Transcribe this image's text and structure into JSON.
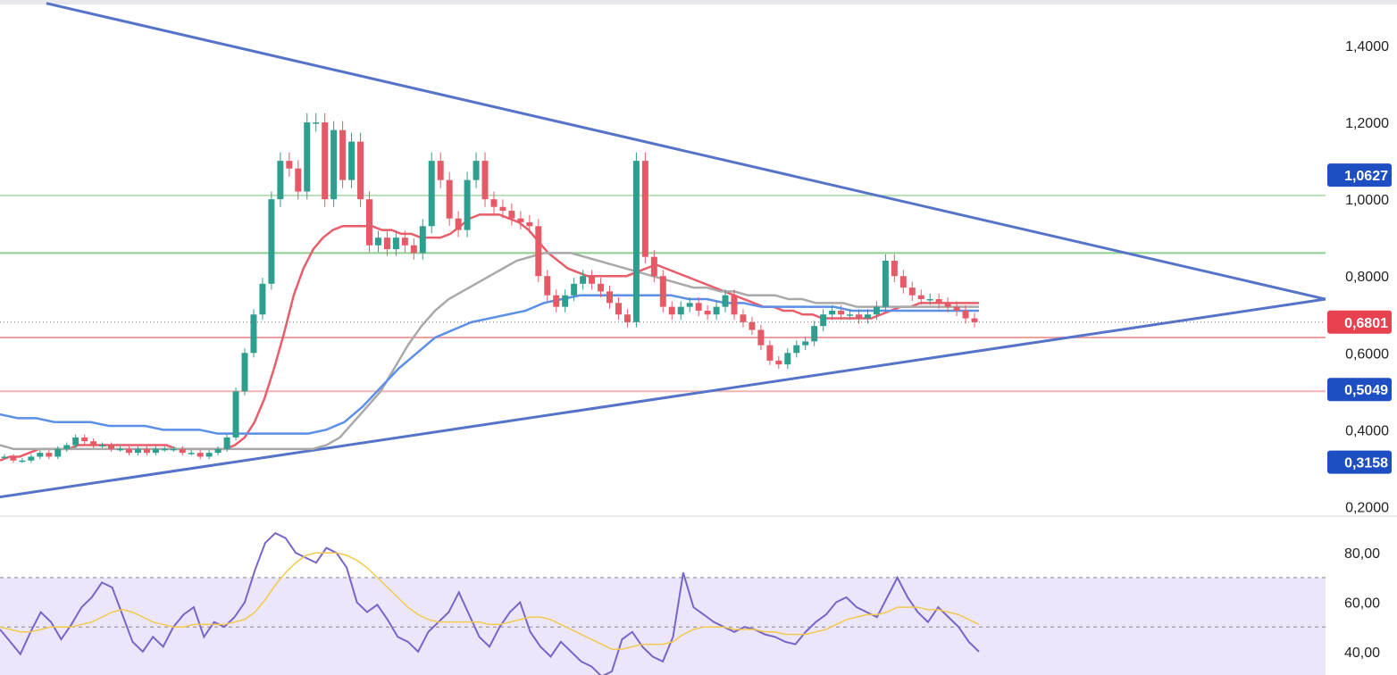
{
  "chart_data": [
    {
      "type": "candlestick",
      "title": "",
      "price_axis": {
        "ticks": [
          "1,4000",
          "1,2000",
          "1,0000",
          "0,8000",
          "0,6000",
          "0,4000",
          "0,2000"
        ],
        "tick_values": [
          1.4,
          1.2,
          1.0,
          0.8,
          0.6,
          0.4,
          0.2
        ],
        "range": [
          0.18,
          1.5
        ]
      },
      "price_labels": [
        {
          "text": "1,0627",
          "value": 1.0627,
          "color": "#1e4fc2"
        },
        {
          "text": "0,6801",
          "value": 0.6801,
          "color": "#e8414f"
        },
        {
          "text": "0,5049",
          "value": 0.5049,
          "color": "#1e4fc2"
        },
        {
          "text": "0,3158",
          "value": 0.3158,
          "color": "#1e4fc2"
        }
      ],
      "last_price": 0.6801,
      "horizontal_levels": [
        {
          "value": 1.01,
          "color": "#b9dfb9"
        },
        {
          "value": 0.86,
          "color": "#8ccf8c"
        },
        {
          "value": 0.64,
          "color": "#f0a0a0"
        },
        {
          "value": 0.5,
          "color": "#f3b4b4"
        }
      ],
      "close_series": [
        0.33,
        0.32,
        0.32,
        0.33,
        0.34,
        0.33,
        0.35,
        0.36,
        0.38,
        0.37,
        0.36,
        0.36,
        0.35,
        0.35,
        0.34,
        0.35,
        0.34,
        0.35,
        0.35,
        0.35,
        0.34,
        0.34,
        0.33,
        0.34,
        0.35,
        0.38,
        0.5,
        0.6,
        0.7,
        0.78,
        1.0,
        1.1,
        1.08,
        1.02,
        1.2,
        1.2,
        1.0,
        1.18,
        1.05,
        1.15,
        1.0,
        0.88,
        0.9,
        0.87,
        0.9,
        0.88,
        0.86,
        0.93,
        1.1,
        1.05,
        0.95,
        0.92,
        1.05,
        1.1,
        1.0,
        0.98,
        0.97,
        0.95,
        0.94,
        0.93,
        0.8,
        0.75,
        0.72,
        0.75,
        0.78,
        0.8,
        0.78,
        0.76,
        0.73,
        0.7,
        0.68,
        1.1,
        0.85,
        0.8,
        0.72,
        0.7,
        0.72,
        0.73,
        0.71,
        0.7,
        0.72,
        0.75,
        0.7,
        0.68,
        0.66,
        0.62,
        0.58,
        0.57,
        0.6,
        0.62,
        0.63,
        0.67,
        0.7,
        0.71,
        0.7,
        0.7,
        0.69,
        0.7,
        0.72,
        0.84,
        0.8,
        0.77,
        0.75,
        0.74,
        0.74,
        0.73,
        0.72,
        0.71,
        0.69,
        0.68
      ],
      "moving_averages": [
        {
          "color": "#e85d6a",
          "values": [
            0.32,
            0.33,
            0.33,
            0.34,
            0.35,
            0.35,
            0.35,
            0.35,
            0.36,
            0.36,
            0.36,
            0.36,
            0.36,
            0.36,
            0.36,
            0.36,
            0.36,
            0.36,
            0.35,
            0.35,
            0.35,
            0.35,
            0.35,
            0.35,
            0.36,
            0.38,
            0.42,
            0.48,
            0.56,
            0.65,
            0.75,
            0.82,
            0.87,
            0.9,
            0.92,
            0.93,
            0.93,
            0.93,
            0.93,
            0.92,
            0.92,
            0.91,
            0.91,
            0.9,
            0.9,
            0.9,
            0.91,
            0.93,
            0.95,
            0.96,
            0.96,
            0.96,
            0.95,
            0.94,
            0.92,
            0.89,
            0.86,
            0.84,
            0.82,
            0.81,
            0.8,
            0.8,
            0.8,
            0.8,
            0.8,
            0.81,
            0.82,
            0.83,
            0.82,
            0.81,
            0.8,
            0.79,
            0.78,
            0.77,
            0.76,
            0.75,
            0.74,
            0.73,
            0.72,
            0.72,
            0.71,
            0.71,
            0.7,
            0.7,
            0.69,
            0.69,
            0.69,
            0.69,
            0.69,
            0.69,
            0.7,
            0.71,
            0.72,
            0.72,
            0.73,
            0.73,
            0.73,
            0.73,
            0.73,
            0.73,
            0.73
          ]
        },
        {
          "color": "#a9a9a9",
          "values": [
            0.36,
            0.35,
            0.35,
            0.35,
            0.35,
            0.35,
            0.35,
            0.35,
            0.35,
            0.35,
            0.35,
            0.35,
            0.35,
            0.35,
            0.35,
            0.35,
            0.35,
            0.35,
            0.35,
            0.35,
            0.35,
            0.35,
            0.35,
            0.35,
            0.36,
            0.38,
            0.42,
            0.46,
            0.5,
            0.56,
            0.62,
            0.67,
            0.71,
            0.74,
            0.76,
            0.78,
            0.8,
            0.82,
            0.84,
            0.85,
            0.86,
            0.86,
            0.86,
            0.85,
            0.84,
            0.83,
            0.82,
            0.81,
            0.8,
            0.79,
            0.78,
            0.77,
            0.77,
            0.76,
            0.76,
            0.75,
            0.75,
            0.75,
            0.74,
            0.74,
            0.73,
            0.73,
            0.73,
            0.72,
            0.72,
            0.72,
            0.72,
            0.72,
            0.72,
            0.72,
            0.72,
            0.72,
            0.72
          ]
        },
        {
          "color": "#5b8fe8",
          "values": [
            0.44,
            0.43,
            0.43,
            0.42,
            0.42,
            0.42,
            0.41,
            0.41,
            0.41,
            0.4,
            0.4,
            0.4,
            0.39,
            0.39,
            0.39,
            0.39,
            0.39,
            0.39,
            0.4,
            0.42,
            0.46,
            0.51,
            0.56,
            0.6,
            0.64,
            0.66,
            0.68,
            0.69,
            0.7,
            0.71,
            0.73,
            0.74,
            0.75,
            0.75,
            0.75,
            0.75,
            0.75,
            0.75,
            0.74,
            0.74,
            0.73,
            0.73,
            0.72,
            0.72,
            0.72,
            0.72,
            0.72,
            0.71,
            0.71,
            0.71,
            0.71,
            0.71,
            0.71,
            0.71,
            0.71
          ]
        }
      ],
      "trendlines": [
        {
          "role": "upper",
          "from": [
            0.035,
            1.51
          ],
          "to": [
            1.0,
            0.74
          ],
          "color": "#5573c9"
        },
        {
          "role": "lower",
          "from": [
            0.0,
            0.225
          ],
          "to": [
            1.0,
            0.74
          ],
          "color": "#5573c9"
        }
      ]
    },
    {
      "type": "line",
      "title": "",
      "y_axis": {
        "ticks": [
          "80,00",
          "60,00",
          "40,00"
        ],
        "tick_values": [
          80,
          60,
          40
        ],
        "range": [
          32,
          92
        ]
      },
      "band": {
        "upper": 70,
        "lower": 30,
        "middle": 50,
        "color": "#ece6fb"
      },
      "series": [
        {
          "color": "#7a64c8",
          "values": [
            49,
            44,
            39,
            48,
            56,
            52,
            45,
            51,
            58,
            62,
            68,
            66,
            55,
            44,
            40,
            46,
            42,
            50,
            55,
            58,
            46,
            52,
            50,
            54,
            60,
            73,
            84,
            88,
            86,
            80,
            78,
            76,
            82,
            80,
            74,
            60,
            56,
            59,
            53,
            46,
            44,
            40,
            48,
            52,
            56,
            64,
            55,
            46,
            42,
            50,
            56,
            60,
            48,
            42,
            38,
            44,
            40,
            36,
            34,
            30,
            32,
            45,
            48,
            42,
            38,
            36,
            46,
            72,
            58,
            55,
            52,
            50,
            48,
            50,
            49,
            47,
            46,
            44,
            43,
            48,
            52,
            55,
            60,
            62,
            58,
            56,
            54,
            62,
            70,
            62,
            56,
            52,
            58,
            54,
            50,
            44,
            40
          ]
        },
        {
          "color": "#f2c94c",
          "values": [
            50,
            49,
            48,
            48,
            49,
            50,
            50,
            50,
            51,
            52,
            54,
            56,
            57,
            56,
            54,
            52,
            51,
            50,
            50,
            51,
            51,
            51,
            51,
            52,
            53,
            56,
            61,
            67,
            72,
            76,
            79,
            80,
            80,
            80,
            79,
            77,
            74,
            70,
            66,
            62,
            58,
            55,
            53,
            52,
            52,
            52,
            52,
            52,
            51,
            51,
            52,
            53,
            54,
            54,
            53,
            51,
            49,
            47,
            45,
            43,
            41,
            41,
            42,
            43,
            43,
            43,
            44,
            47,
            49,
            50,
            50,
            50,
            49,
            49,
            49,
            48,
            48,
            47,
            47,
            47,
            48,
            49,
            51,
            53,
            54,
            55,
            55,
            56,
            58,
            58,
            58,
            57,
            57,
            56,
            55,
            53,
            51
          ]
        }
      ]
    }
  ]
}
